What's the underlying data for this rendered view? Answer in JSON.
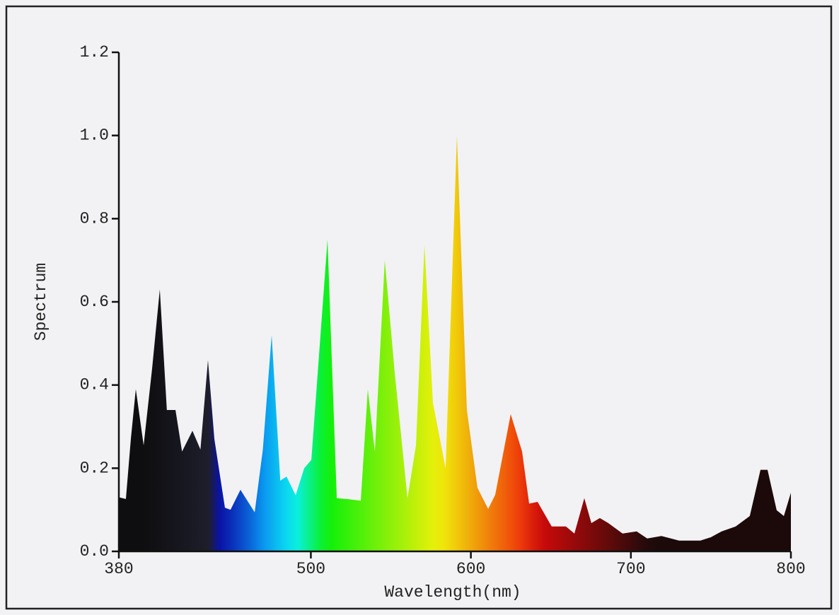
{
  "chart_data": {
    "type": "area",
    "x_label": "Wavelength(nm)",
    "y_label": "Spectrum",
    "x": [
      380,
      384.4,
      387.5,
      390.6,
      395.5,
      400.8,
      405.6,
      410,
      415.4,
      419.5,
      426,
      431,
      435.7,
      439.7,
      446.3,
      449.8,
      456,
      464.9,
      470,
      475.5,
      480.9,
      484.8,
      490.5,
      495.8,
      500.3,
      510.4,
      516.2,
      522.4,
      531.2,
      535.6,
      540,
      546.2,
      552.4,
      560.4,
      565.7,
      571,
      576.3,
      584.2,
      591.3,
      597.5,
      604.1,
      610.8,
      615.2,
      624.9,
      632,
      636.4,
      641.7,
      650.5,
      659.4,
      664.7,
      670.9,
      675.3,
      680.6,
      685.9,
      694.8,
      703.6,
      710.2,
      719.1,
      730.1,
      743.4,
      750,
      756.7,
      765.5,
      774.3,
      781,
      785.4,
      791.1,
      795.6,
      800
    ],
    "values": [
      0.13,
      0.126,
      0.27,
      0.39,
      0.255,
      0.44,
      0.63,
      0.34,
      0.34,
      0.24,
      0.29,
      0.245,
      0.46,
      0.27,
      0.105,
      0.1,
      0.148,
      0.094,
      0.245,
      0.52,
      0.17,
      0.18,
      0.135,
      0.2,
      0.22,
      0.75,
      0.128,
      0.126,
      0.122,
      0.39,
      0.24,
      0.7,
      0.43,
      0.128,
      0.255,
      0.737,
      0.357,
      0.2,
      1.0,
      0.34,
      0.153,
      0.102,
      0.136,
      0.33,
      0.24,
      0.115,
      0.119,
      0.06,
      0.06,
      0.043,
      0.128,
      0.068,
      0.08,
      0.068,
      0.043,
      0.048,
      0.031,
      0.037,
      0.026,
      0.026,
      0.034,
      0.048,
      0.06,
      0.085,
      0.196,
      0.196,
      0.099,
      0.085,
      0.141
    ],
    "xlim": [
      380,
      800
    ],
    "xticks": [
      380,
      500,
      600,
      700,
      800
    ],
    "ylim": [
      0,
      1.2
    ],
    "yticks": [
      {
        "value": 0,
        "label": "0.0"
      },
      0.2,
      0.4,
      0.6,
      0.8,
      {
        "value": 1,
        "label": "1.0"
      },
      1.2
    ]
  }
}
